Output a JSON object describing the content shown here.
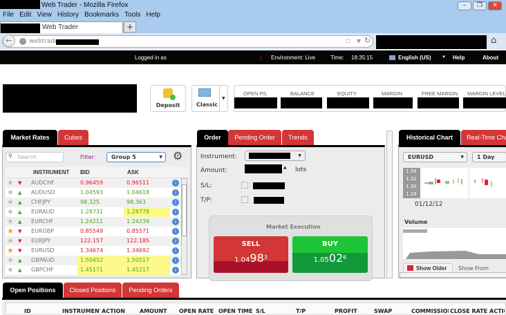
{
  "browser": {
    "title": "Web Trader - Mozilla Firefox",
    "menu": [
      "File",
      "Edit",
      "View",
      "History",
      "Bookmarks",
      "Tools",
      "Help"
    ],
    "tab_title": "Web Trader",
    "url": "webtrader.",
    "new_tab": "+"
  },
  "topbar": {
    "logged_in": "Logged in as",
    "environment": "Environment: Live",
    "time_label": "Time:",
    "time": "18:35:15",
    "language": "English (US)",
    "help": "Help",
    "about": "About"
  },
  "toolbar": {
    "deposit": "Deposit",
    "layout": "Classic",
    "summary": [
      "OPEN P/L",
      "BALANCE",
      "EQUITY",
      "MARGIN",
      "FREE MARGIN",
      "MARGIN LEVEL"
    ]
  },
  "market": {
    "tabs": [
      "Market Rates",
      "Cubes"
    ],
    "search_placeholder": "Search",
    "filter_label": "Filter:",
    "filter_value": "Group 5",
    "columns": [
      "INSTRUMENT",
      "BID",
      "ASK"
    ],
    "rows": [
      {
        "inst": "AUDCHF",
        "bid": "0.96459",
        "ask": "0.96511",
        "dir": "down",
        "fav": false,
        "hl_bid": false,
        "hl_ask": false
      },
      {
        "inst": "AUDUSD",
        "bid": "1.04593",
        "ask": "1.04618",
        "dir": "up",
        "fav": false,
        "hl_bid": false,
        "hl_ask": false
      },
      {
        "inst": "CHFJPY",
        "bid": "98.325",
        "ask": "98.363",
        "dir": "up",
        "fav": false,
        "hl_bid": false,
        "hl_ask": false
      },
      {
        "inst": "EURAUD",
        "bid": "1.28731",
        "ask": "1.28778",
        "dir": "up",
        "fav": false,
        "hl_bid": false,
        "hl_ask": true
      },
      {
        "inst": "EURCHF",
        "bid": "1.24211",
        "ask": "1.24239",
        "dir": "up",
        "fav": false,
        "hl_bid": false,
        "hl_ask": false
      },
      {
        "inst": "EURGBP",
        "bid": "0.85549",
        "ask": "0.85571",
        "dir": "down",
        "fav": true,
        "hl_bid": false,
        "hl_ask": false
      },
      {
        "inst": "EURJPY",
        "bid": "122.157",
        "ask": "122.185",
        "dir": "down",
        "fav": false,
        "hl_bid": false,
        "hl_ask": false
      },
      {
        "inst": "EURUSD",
        "bid": "1.34674",
        "ask": "1.34692",
        "dir": "down",
        "fav": true,
        "hl_bid": false,
        "hl_ask": false
      },
      {
        "inst": "GBPAUD",
        "bid": "1.50452",
        "ask": "1.50517",
        "dir": "up",
        "fav": false,
        "hl_bid": true,
        "hl_ask": true
      },
      {
        "inst": "GBPCHF",
        "bid": "1.45171",
        "ask": "1.45217",
        "dir": "up",
        "fav": false,
        "hl_bid": true,
        "hl_ask": true
      }
    ]
  },
  "order": {
    "tabs": [
      "Order",
      "Pending Order",
      "Trends"
    ],
    "instrument_label": "Instrument:",
    "amount_label": "Amount:",
    "lots": "lots",
    "sl_label": "S/L:",
    "tp_label": "T/P:",
    "execution": "Market Execution",
    "sell": {
      "label": "SELL",
      "prefix": "1.04",
      "big": "98",
      "sup": "3"
    },
    "buy": {
      "label": "BUY",
      "prefix": "1.05",
      "big": "02",
      "sup": "6"
    }
  },
  "chart": {
    "tabs": [
      "Historical Chart",
      "Real-Time Chart"
    ],
    "symbol": "EURUSD",
    "period": "1 Day",
    "y_ticks": [
      "1.34",
      "1.32",
      "1.30",
      "1.28"
    ],
    "date": "01/12/12",
    "volume": "Volume",
    "show_older": "Show Older",
    "show_from": "Show From"
  },
  "positions": {
    "tabs": [
      "Open Positions",
      "Closed Positions",
      "Pending Orders"
    ],
    "columns": [
      "ID",
      "INSTRUMENT",
      "ACTION",
      "AMOUNT",
      "OPEN RATE",
      "OPEN TIME",
      "S/L",
      "T/P",
      "PROFIT",
      "SWAP",
      "COMMISSION",
      "CLOSE RATE",
      "ACTIONS"
    ]
  }
}
